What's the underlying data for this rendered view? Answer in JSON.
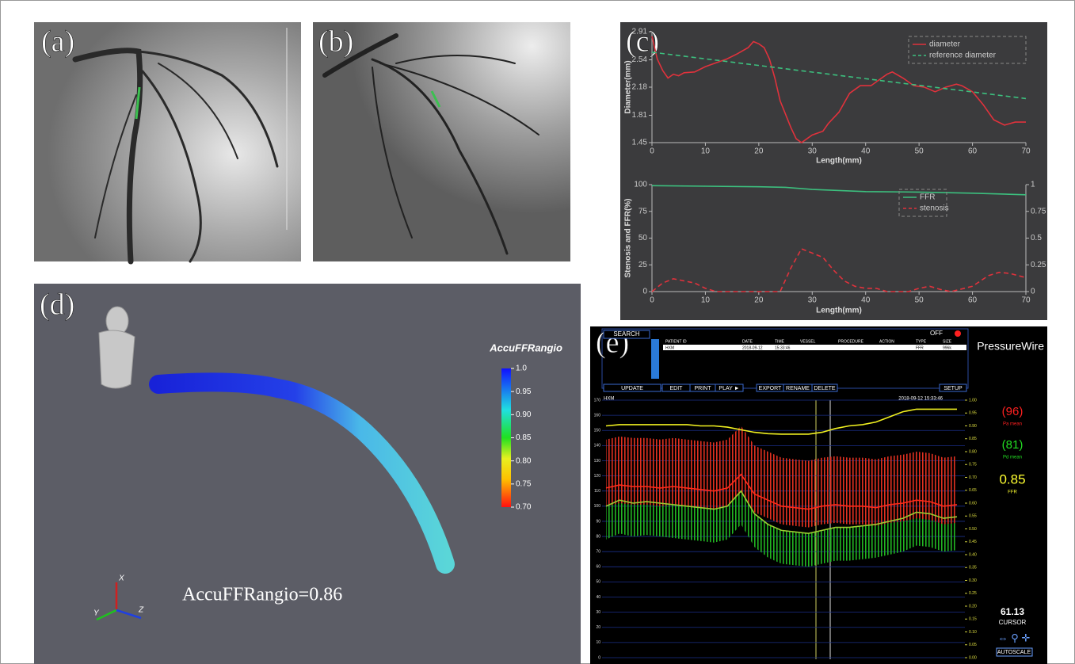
{
  "panel_labels": [
    "(a)",
    "(b)",
    "(c)",
    "(d)",
    "(e)"
  ],
  "chart_data": [
    {
      "type": "line",
      "x_label": "Length(mm)",
      "y_label": "Diameter(mm)",
      "xlim": [
        0,
        70
      ],
      "xticks": [
        0,
        10,
        20,
        30,
        40,
        50,
        60,
        70
      ],
      "ylim": [
        1.45,
        2.91
      ],
      "yticks": [
        1.45,
        1.81,
        2.18,
        2.54,
        2.91
      ],
      "legend": "upper right",
      "series": [
        {
          "name": "diameter",
          "color": "#e0323c",
          "style": "solid",
          "x": [
            0,
            1,
            2,
            3,
            4,
            5,
            6,
            8,
            10,
            12,
            14,
            16,
            18,
            19,
            20,
            21,
            22,
            23,
            24,
            26,
            27,
            28,
            29,
            30,
            32,
            33,
            35,
            37,
            39,
            41,
            43,
            44,
            45,
            47,
            49,
            51,
            53,
            55,
            57,
            58,
            60,
            62,
            64,
            66,
            68,
            70
          ],
          "values": [
            2.85,
            2.55,
            2.4,
            2.3,
            2.35,
            2.33,
            2.37,
            2.38,
            2.45,
            2.5,
            2.55,
            2.62,
            2.7,
            2.78,
            2.75,
            2.7,
            2.55,
            2.3,
            2.0,
            1.65,
            1.5,
            1.45,
            1.5,
            1.55,
            1.6,
            1.7,
            1.85,
            2.1,
            2.2,
            2.2,
            2.3,
            2.35,
            2.38,
            2.3,
            2.2,
            2.18,
            2.12,
            2.18,
            2.22,
            2.2,
            2.12,
            1.95,
            1.75,
            1.68,
            1.72,
            1.72
          ]
        },
        {
          "name": "reference diameter",
          "color": "#3cbf7e",
          "style": "dashed",
          "x": [
            0,
            70
          ],
          "values": [
            2.64,
            2.03
          ]
        }
      ]
    },
    {
      "type": "line",
      "x_label": "Length(mm)",
      "y_label": "Stenosis and FFR(%)",
      "xlim": [
        0,
        70
      ],
      "xticks": [
        0,
        10,
        20,
        30,
        40,
        50,
        60,
        70
      ],
      "ylim": [
        0,
        100
      ],
      "yticks": [
        0,
        25,
        50,
        75,
        100
      ],
      "y2lim": [
        0,
        1
      ],
      "y2ticks": [
        0,
        0.25,
        0.5,
        0.75,
        1
      ],
      "legend": "upper right",
      "series": [
        {
          "name": "FFR",
          "color": "#3cbf7e",
          "style": "solid",
          "axis": "y2",
          "x": [
            0,
            10,
            20,
            25,
            30,
            40,
            50,
            60,
            70
          ],
          "values": [
            0.99,
            0.985,
            0.98,
            0.975,
            0.955,
            0.935,
            0.93,
            0.92,
            0.905
          ]
        },
        {
          "name": "stenosis",
          "color": "#e0323c",
          "style": "dashed",
          "x": [
            0,
            2,
            4,
            6,
            8,
            10,
            12,
            24,
            26,
            28,
            30,
            32,
            34,
            36,
            38,
            40,
            42,
            44,
            48,
            50,
            52,
            54,
            56,
            60,
            63,
            65,
            67,
            70
          ],
          "values": [
            0,
            8,
            12,
            10,
            8,
            3,
            0,
            0,
            22,
            40,
            36,
            32,
            20,
            10,
            5,
            3,
            3,
            0,
            0,
            3,
            5,
            2,
            0,
            5,
            15,
            18,
            17,
            13
          ]
        }
      ]
    }
  ],
  "panel_d": {
    "colorbar": {
      "title": "AccuFFRangio",
      "lim": [
        0.7,
        1
      ],
      "ticks": [
        {
          "value": 1,
          "label": "1.0"
        },
        0.95,
        {
          "value": 0.9,
          "label": "0.90"
        },
        0.85,
        {
          "value": 0.8,
          "label": "0.80"
        },
        0.75,
        {
          "value": 0.7,
          "label": "0.70"
        }
      ]
    },
    "annotation": "AccuFFRangio=0.86",
    "axes": [
      "X",
      "Y",
      "Z"
    ]
  },
  "panel_e": {
    "search": "SEARCH",
    "status": "OFF",
    "brand": "PressureWire",
    "toolbar": [
      "UPDATE",
      "EDIT",
      "PRINT",
      "PLAY ►",
      "EXPORT",
      "RENAME",
      "DELETE",
      "SETUP"
    ],
    "columns": [
      "PATIENT ID",
      "DATE",
      "TIME",
      "VESSEL",
      "PROCEDURE",
      "ACTION",
      "TYPE",
      "SIZE"
    ],
    "row": {
      "patient": "HXM",
      "date": "2018-09-12",
      "time": "15:33:46",
      "type": "FFR",
      "size": "996k"
    },
    "subheader": {
      "patient": "HXM",
      "timestamp": "2018-09-12 15:33:46"
    },
    "readouts": [
      {
        "value": {
          "value": 96,
          "label": "(96)"
        },
        "label": "Pa mean",
        "color": "#ff2020"
      },
      {
        "value": {
          "value": 81,
          "label": "(81)"
        },
        "label": "Pd mean",
        "color": "#22dd22"
      },
      {
        "value": 0.85,
        "label": "FFR",
        "color": "#ffff30"
      }
    ],
    "cursor": {
      "value": 61.13,
      "label": "CURSOR"
    },
    "autoscale": "AUTOSCALE",
    "monitor": {
      "ylim": [
        0,
        170
      ],
      "yticks": [
        0,
        10,
        20,
        30,
        40,
        50,
        60,
        70,
        80,
        90,
        100,
        110,
        120,
        130,
        140,
        150,
        160,
        170
      ],
      "y2lim": [
        0,
        1
      ],
      "y2ticks": [
        {
          "value": 0,
          "label": "0.00"
        },
        0.05,
        {
          "value": 0.1,
          "label": "0.10"
        },
        0.15,
        {
          "value": 0.2,
          "label": "0.20"
        },
        0.25,
        {
          "value": 0.3,
          "label": "0.30"
        },
        0.35,
        {
          "value": 0.4,
          "label": "0.40"
        },
        0.45,
        {
          "value": 0.5,
          "label": "0.50"
        },
        0.55,
        {
          "value": 0.6,
          "label": "0.60"
        },
        0.65,
        {
          "value": 0.7,
          "label": "0.70"
        },
        0.75,
        {
          "value": 0.8,
          "label": "0.80"
        },
        0.85,
        {
          "value": 0.9,
          "label": "0.90"
        },
        0.95,
        {
          "value": 1,
          "label": "1.00"
        }
      ],
      "series": [
        {
          "color": "#ff2a1a",
          "values": [
            112,
            114,
            113,
            113,
            112,
            113,
            112,
            111,
            110,
            112,
            121,
            108,
            104,
            100,
            99,
            98,
            100,
            101,
            100,
            100,
            99,
            101,
            102,
            104,
            103,
            100,
            101
          ]
        },
        {
          "color": "#9acd32",
          "values": [
            100,
            104,
            102,
            103,
            102,
            101,
            100,
            99,
            98,
            100,
            110,
            95,
            88,
            84,
            83,
            82,
            84,
            86,
            86,
            87,
            88,
            90,
            92,
            96,
            95,
            92,
            93
          ]
        },
        {
          "color": "#f0f020",
          "axis": "y2",
          "values": [
            0.9,
            0.905,
            0.905,
            0.905,
            0.905,
            0.905,
            0.905,
            0.9,
            0.9,
            0.895,
            0.885,
            0.875,
            0.87,
            0.868,
            0.868,
            0.868,
            0.875,
            0.89,
            0.9,
            0.905,
            0.915,
            0.935,
            0.955,
            0.965,
            0.965,
            0.965,
            0.965
          ]
        }
      ]
    }
  }
}
